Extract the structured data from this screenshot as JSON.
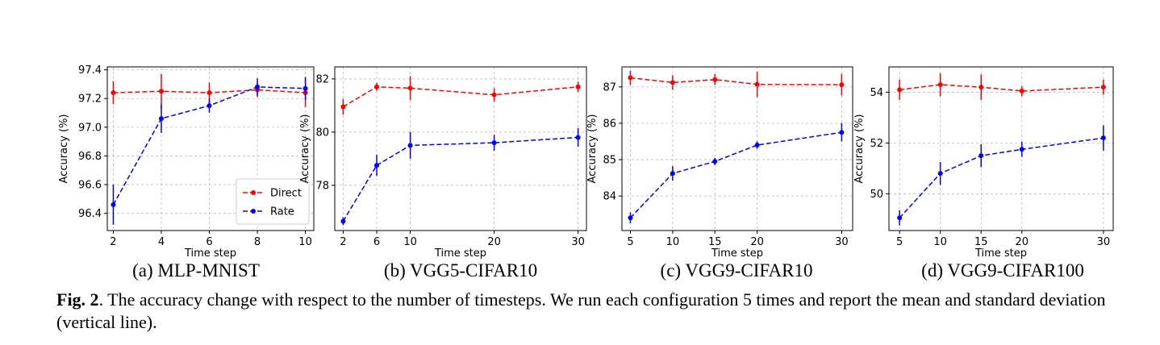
{
  "caption": {
    "label": "Fig. 2",
    "text": ". The accuracy change with respect to the number of timesteps. We run each configuration 5 times and report the mean and standard deviation (vertical line)."
  },
  "colors": {
    "direct": "#ff0000",
    "rate": "#0000ff",
    "grid": "#b0b0b0"
  },
  "chart_data": [
    {
      "type": "line",
      "subcaption": "(a) MLP-MNIST",
      "xlabel": "Time step",
      "ylabel": "Accuracy (%)",
      "xlim": [
        1.75,
        10.35
      ],
      "ylim": [
        96.28,
        97.42
      ],
      "xticks": [
        2,
        4,
        6,
        8,
        10
      ],
      "yticks": [
        96.4,
        96.6,
        96.8,
        97.0,
        97.2,
        97.4
      ],
      "ytick_labels": [
        "96.4",
        "96.6",
        "96.8",
        "97.0",
        "97.2",
        "97.4"
      ],
      "legend": {
        "position": "lower-right",
        "entries": [
          "Direct",
          "Rate"
        ]
      },
      "series": [
        {
          "name": "Direct",
          "x": [
            2,
            4,
            6,
            8,
            10
          ],
          "y": [
            97.24,
            97.25,
            97.24,
            97.26,
            97.24
          ],
          "err": [
            0.08,
            0.12,
            0.07,
            0.05,
            0.1
          ]
        },
        {
          "name": "Rate",
          "x": [
            2,
            4,
            6,
            8,
            10
          ],
          "y": [
            96.46,
            97.06,
            97.15,
            97.28,
            97.27
          ],
          "err": [
            0.14,
            0.1,
            0.05,
            0.06,
            0.08
          ]
        }
      ]
    },
    {
      "type": "line",
      "subcaption": "(b) VGG5-CIFAR10",
      "xlabel": "Time step",
      "ylabel": "Accuracy (%)",
      "xlim": [
        1.0,
        31.0
      ],
      "ylim": [
        76.3,
        82.45
      ],
      "xticks": [
        2,
        6,
        10,
        20,
        30
      ],
      "yticks": [
        78,
        80,
        82
      ],
      "ytick_labels": [
        "78",
        "80",
        "82"
      ],
      "series": [
        {
          "name": "Direct",
          "x": [
            2,
            6,
            10,
            20,
            30
          ],
          "y": [
            80.95,
            81.7,
            81.65,
            81.4,
            81.7
          ],
          "err": [
            0.3,
            0.15,
            0.45,
            0.25,
            0.2
          ]
        },
        {
          "name": "Rate",
          "x": [
            2,
            6,
            10,
            20,
            30
          ],
          "y": [
            76.65,
            78.75,
            79.5,
            79.6,
            79.8
          ],
          "err": [
            0.15,
            0.4,
            0.5,
            0.3,
            0.35
          ]
        }
      ]
    },
    {
      "type": "line",
      "subcaption": "(c) VGG9-CIFAR10",
      "xlabel": "Time step",
      "ylabel": "Accuracy (%)",
      "xlim": [
        4.0,
        31.3
      ],
      "ylim": [
        83.05,
        87.55
      ],
      "xticks": [
        5,
        10,
        15,
        20,
        30
      ],
      "yticks": [
        84,
        85,
        86,
        87
      ],
      "ytick_labels": [
        "84",
        "85",
        "86",
        "87"
      ],
      "series": [
        {
          "name": "Direct",
          "x": [
            5,
            10,
            15,
            20,
            30
          ],
          "y": [
            87.25,
            87.12,
            87.2,
            87.07,
            87.06
          ],
          "err": [
            0.2,
            0.2,
            0.15,
            0.35,
            0.3
          ]
        },
        {
          "name": "Rate",
          "x": [
            5,
            10,
            15,
            20,
            30
          ],
          "y": [
            83.4,
            84.62,
            84.95,
            85.4,
            85.75
          ],
          "err": [
            0.15,
            0.2,
            0.1,
            0.1,
            0.25
          ]
        }
      ]
    },
    {
      "type": "line",
      "subcaption": "(d) VGG9-CIFAR100",
      "xlabel": "Time step",
      "ylabel": "Accuracy (%)",
      "xlim": [
        3.7,
        31.2
      ],
      "ylim": [
        48.55,
        55.0
      ],
      "xticks": [
        5,
        10,
        15,
        20,
        30
      ],
      "yticks": [
        50,
        52,
        54
      ],
      "ytick_labels": [
        "50",
        "52",
        "54"
      ],
      "series": [
        {
          "name": "Direct",
          "x": [
            5,
            10,
            15,
            20,
            30
          ],
          "y": [
            54.1,
            54.3,
            54.2,
            54.05,
            54.2
          ],
          "err": [
            0.4,
            0.45,
            0.5,
            0.2,
            0.3
          ]
        },
        {
          "name": "Rate",
          "x": [
            5,
            10,
            15,
            20,
            30
          ],
          "y": [
            49.05,
            50.8,
            51.5,
            51.75,
            52.2
          ],
          "err": [
            0.3,
            0.45,
            0.45,
            0.3,
            0.5
          ]
        }
      ]
    }
  ]
}
